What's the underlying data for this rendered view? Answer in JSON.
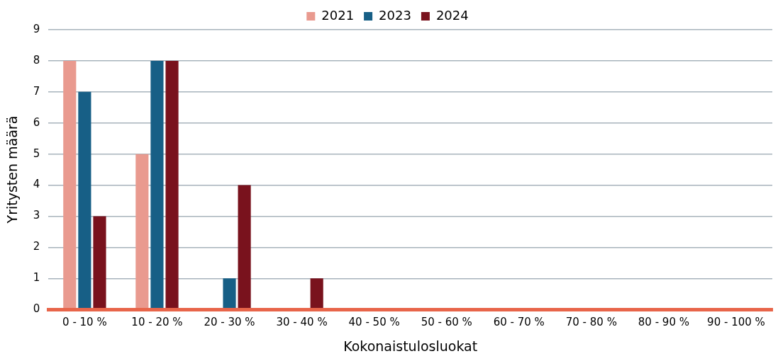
{
  "chart_data": {
    "type": "bar",
    "xlabel": "Kokonaistulosluokat",
    "ylabel": "Yritysten määrä",
    "categories": [
      "0 - 10 %",
      "10 - 20 %",
      "20 - 30 %",
      "30 - 40 %",
      "40 - 50 %",
      "50 - 60 %",
      "60 - 70 %",
      "70 - 80 %",
      "80 - 90 %",
      "90 - 100 %"
    ],
    "series": [
      {
        "name": "2021",
        "color": "#e99a8f",
        "values": [
          8,
          5,
          0,
          0,
          0,
          0,
          0,
          0,
          0,
          0
        ]
      },
      {
        "name": "2023",
        "color": "#175f86",
        "values": [
          7,
          8,
          1,
          0,
          0,
          0,
          0,
          0,
          0,
          0
        ]
      },
      {
        "name": "2024",
        "color": "#79121d",
        "values": [
          3,
          8,
          4,
          1,
          0,
          0,
          0,
          0,
          0,
          0
        ]
      }
    ],
    "ylim": [
      0,
      9
    ],
    "yticks": [
      0,
      1,
      2,
      3,
      4,
      5,
      6,
      7,
      8,
      9
    ],
    "grid": "y",
    "legend": "top"
  }
}
